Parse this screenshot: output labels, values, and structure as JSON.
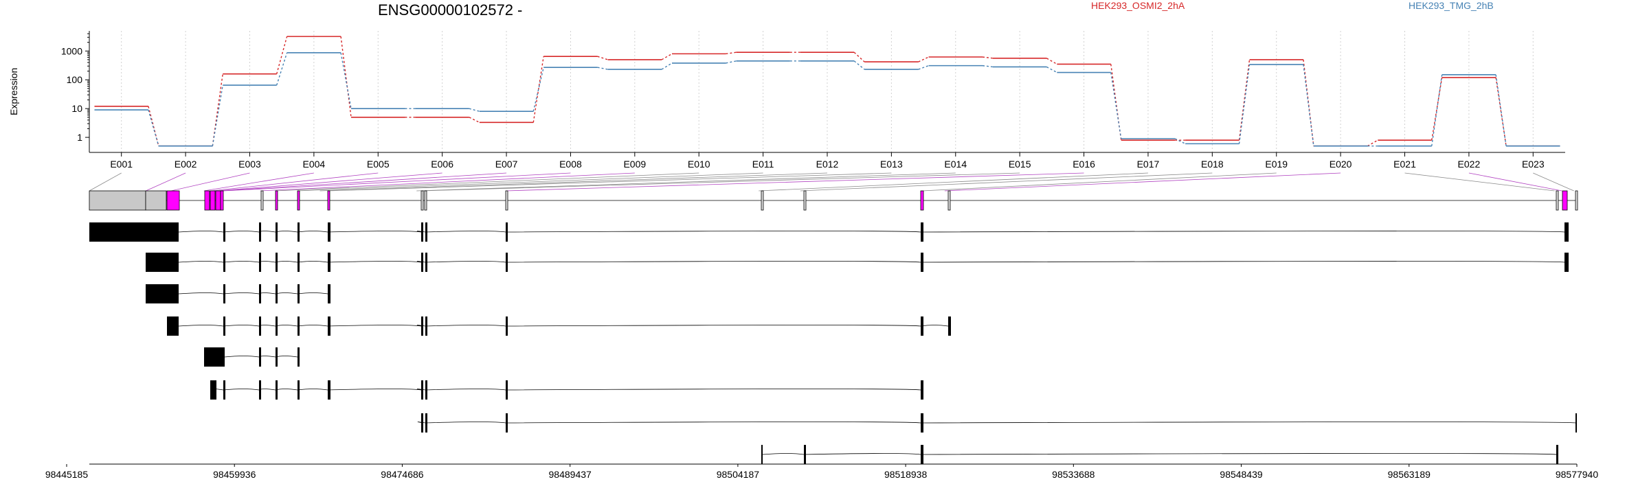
{
  "chart_data": {
    "type": "line",
    "title": "ENSG00000102572 -",
    "ylabel": "Expression",
    "yscale": "log",
    "yticks": [
      "1",
      "10",
      "100",
      "1000"
    ],
    "grid": "vertical dotted lines at exon centers",
    "categories": [
      "E001",
      "E002",
      "E003",
      "E004",
      "E005",
      "E006",
      "E007",
      "E008",
      "E009",
      "E010",
      "E011",
      "E012",
      "E013",
      "E014",
      "E015",
      "E016",
      "E017",
      "E018",
      "E019",
      "E020",
      "E021",
      "E022",
      "E023"
    ],
    "series": [
      {
        "name": "HEK293_OSMI2_2hA",
        "color": "#d62728",
        "values": [
          12,
          0.5,
          160,
          3200,
          5,
          5,
          3.3,
          650,
          500,
          800,
          900,
          900,
          420,
          620,
          560,
          350,
          0.8,
          0.8,
          500,
          0.5,
          0.8,
          120,
          0.5
        ]
      },
      {
        "name": "HEK293_TMG_2hB",
        "color": "#4682b4",
        "values": [
          9,
          0.5,
          65,
          870,
          10,
          10,
          8,
          270,
          230,
          380,
          450,
          450,
          230,
          310,
          280,
          180,
          0.9,
          0.6,
          340,
          0.5,
          0.5,
          150,
          0.5
        ]
      }
    ],
    "genomic_axis_ticks": [
      "98445185",
      "98459936",
      "98474686",
      "98489437",
      "98504187",
      "98518938",
      "98533688",
      "98548439",
      "98563189",
      "98577940"
    ],
    "exon_highlight_color": "#ff00ff"
  }
}
